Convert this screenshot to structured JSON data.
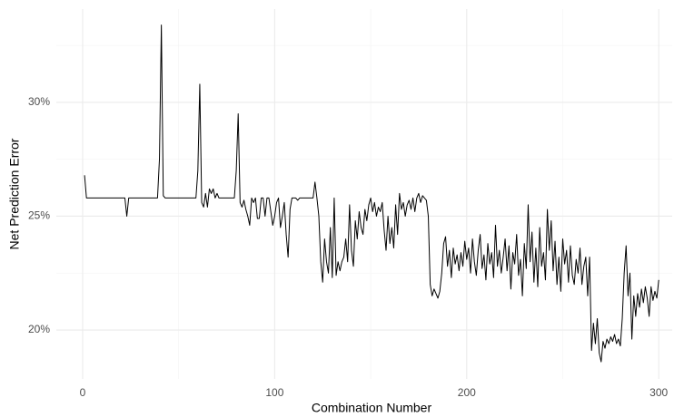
{
  "chart_data": {
    "type": "line",
    "xlabel": "Combination Number",
    "ylabel": "Net Prediction Error",
    "x": [
      1,
      2,
      3,
      4,
      5,
      6,
      7,
      8,
      9,
      10,
      11,
      12,
      13,
      14,
      15,
      16,
      17,
      18,
      19,
      20,
      21,
      22,
      23,
      24,
      25,
      26,
      27,
      28,
      29,
      30,
      31,
      32,
      33,
      34,
      35,
      36,
      37,
      38,
      39,
      40,
      41,
      42,
      43,
      44,
      45,
      46,
      47,
      48,
      49,
      50,
      51,
      52,
      53,
      54,
      55,
      56,
      57,
      58,
      59,
      60,
      61,
      62,
      63,
      64,
      65,
      66,
      67,
      68,
      69,
      70,
      71,
      72,
      73,
      74,
      75,
      76,
      77,
      78,
      79,
      80,
      81,
      82,
      83,
      84,
      85,
      86,
      87,
      88,
      89,
      90,
      91,
      92,
      93,
      94,
      95,
      96,
      97,
      98,
      99,
      100,
      101,
      102,
      103,
      104,
      105,
      106,
      107,
      108,
      109,
      110,
      111,
      112,
      113,
      114,
      115,
      116,
      117,
      118,
      119,
      120,
      121,
      122,
      123,
      124,
      125,
      126,
      127,
      128,
      129,
      130,
      131,
      132,
      133,
      134,
      135,
      136,
      137,
      138,
      139,
      140,
      141,
      142,
      143,
      144,
      145,
      146,
      147,
      148,
      149,
      150,
      151,
      152,
      153,
      154,
      155,
      156,
      157,
      158,
      159,
      160,
      161,
      162,
      163,
      164,
      165,
      166,
      167,
      168,
      169,
      170,
      171,
      172,
      173,
      174,
      175,
      176,
      177,
      178,
      179,
      180,
      181,
      182,
      183,
      184,
      185,
      186,
      187,
      188,
      189,
      190,
      191,
      192,
      193,
      194,
      195,
      196,
      197,
      198,
      199,
      200,
      201,
      202,
      203,
      204,
      205,
      206,
      207,
      208,
      209,
      210,
      211,
      212,
      213,
      214,
      215,
      216,
      217,
      218,
      219,
      220,
      221,
      222,
      223,
      224,
      225,
      226,
      227,
      228,
      229,
      230,
      231,
      232,
      233,
      234,
      235,
      236,
      237,
      238,
      239,
      240,
      241,
      242,
      243,
      244,
      245,
      246,
      247,
      248,
      249,
      250,
      251,
      252,
      253,
      254,
      255,
      256,
      257,
      258,
      259,
      260,
      261,
      262,
      263,
      264,
      265,
      266,
      267,
      268,
      269,
      270,
      271,
      272,
      273,
      274,
      275,
      276,
      277,
      278,
      279,
      280,
      281,
      282,
      283,
      284,
      285,
      286,
      287,
      288,
      289,
      290,
      291,
      292,
      293,
      294,
      295,
      296,
      297,
      298,
      299,
      300
    ],
    "series": [
      {
        "color": "#000000",
        "values": [
          26.8,
          25.8,
          25.8,
          25.8,
          25.8,
          25.8,
          25.8,
          25.8,
          25.8,
          25.8,
          25.8,
          25.8,
          25.8,
          25.8,
          25.8,
          25.8,
          25.8,
          25.8,
          25.8,
          25.8,
          25.8,
          25.8,
          25.0,
          25.8,
          25.8,
          25.8,
          25.8,
          25.8,
          25.8,
          25.8,
          25.8,
          25.8,
          25.8,
          25.8,
          25.8,
          25.8,
          25.8,
          25.8,
          25.8,
          27.5,
          33.4,
          25.9,
          25.8,
          25.8,
          25.8,
          25.8,
          25.8,
          25.8,
          25.8,
          25.8,
          25.8,
          25.8,
          25.8,
          25.8,
          25.8,
          25.8,
          25.8,
          25.8,
          25.8,
          27.0,
          30.8,
          25.6,
          25.4,
          26.0,
          25.4,
          26.2,
          26.0,
          26.2,
          25.8,
          26.0,
          25.8,
          25.8,
          25.8,
          25.8,
          25.8,
          25.8,
          25.8,
          25.8,
          25.8,
          27.0,
          29.5,
          25.6,
          25.4,
          25.7,
          25.3,
          25.0,
          24.6,
          25.8,
          25.6,
          25.8,
          24.9,
          24.9,
          25.8,
          25.8,
          25.0,
          25.8,
          25.8,
          25.2,
          24.6,
          25.0,
          25.6,
          25.8,
          24.5,
          25.0,
          25.6,
          24.2,
          23.2,
          25.3,
          25.8,
          25.8,
          25.8,
          25.7,
          25.8,
          25.8,
          25.8,
          25.8,
          25.8,
          25.8,
          25.8,
          25.8,
          26.5,
          25.8,
          25.0,
          23.0,
          22.1,
          24.0,
          23.0,
          22.5,
          24.5,
          22.3,
          25.8,
          22.4,
          23.0,
          22.6,
          23.0,
          23.2,
          24.0,
          23.0,
          25.5,
          23.5,
          22.8,
          24.8,
          24.0,
          25.2,
          24.5,
          24.2,
          25.3,
          24.8,
          25.5,
          25.8,
          25.2,
          25.6,
          25.0,
          25.4,
          25.2,
          25.6,
          24.4,
          23.5,
          25.0,
          23.8,
          24.5,
          23.6,
          25.5,
          24.2,
          26.0,
          25.3,
          25.6,
          25.0,
          25.5,
          25.7,
          25.3,
          25.8,
          25.2,
          25.8,
          26.0,
          25.6,
          25.9,
          25.8,
          25.7,
          25.0,
          22.0,
          21.5,
          21.8,
          21.6,
          21.4,
          21.7,
          22.5,
          23.8,
          24.1,
          22.8,
          23.5,
          22.3,
          23.6,
          22.9,
          23.3,
          22.6,
          23.4,
          22.8,
          23.9,
          23.1,
          23.6,
          22.5,
          24.0,
          23.0,
          22.4,
          23.5,
          24.2,
          22.7,
          23.3,
          22.2,
          23.8,
          22.9,
          23.4,
          22.3,
          24.6,
          22.8,
          23.5,
          22.5,
          23.2,
          24.0,
          22.6,
          23.7,
          21.8,
          23.4,
          22.9,
          24.2,
          22.4,
          23.1,
          21.5,
          23.8,
          22.7,
          25.5,
          23.0,
          24.3,
          22.1,
          23.6,
          21.9,
          24.5,
          22.8,
          23.4,
          22.2,
          25.3,
          23.5,
          24.8,
          22.6,
          23.9,
          22.0,
          23.2,
          21.7,
          24.0,
          22.9,
          23.5,
          22.1,
          23.7,
          22.4,
          22.0,
          23.1,
          22.5,
          23.6,
          22.0,
          22.8,
          23.2,
          21.5,
          23.2,
          19.1,
          20.3,
          19.4,
          20.5,
          19.0,
          18.6,
          19.5,
          19.2,
          19.6,
          19.4,
          19.7,
          19.5,
          19.8,
          19.4,
          19.6,
          19.3,
          20.5,
          22.5,
          23.7,
          21.5,
          22.5,
          19.6,
          21.5,
          20.6,
          21.6,
          21.0,
          21.8,
          21.2,
          21.9,
          21.4,
          20.6,
          21.9,
          21.3,
          21.7,
          21.4,
          22.2
        ]
      }
    ],
    "xlim": [
      -13.7,
      307
    ],
    "ylim": [
      17.85,
      34.1
    ],
    "xticks": [
      0,
      100,
      200,
      300
    ],
    "yticks": [
      {
        "value": 20,
        "label": "20%"
      },
      {
        "value": 25,
        "label": "25%"
      },
      {
        "value": 30,
        "label": "30%"
      }
    ],
    "xminor": [
      50,
      150,
      250
    ],
    "yminor": [
      22.5,
      27.5,
      32.5
    ],
    "grid": true
  }
}
